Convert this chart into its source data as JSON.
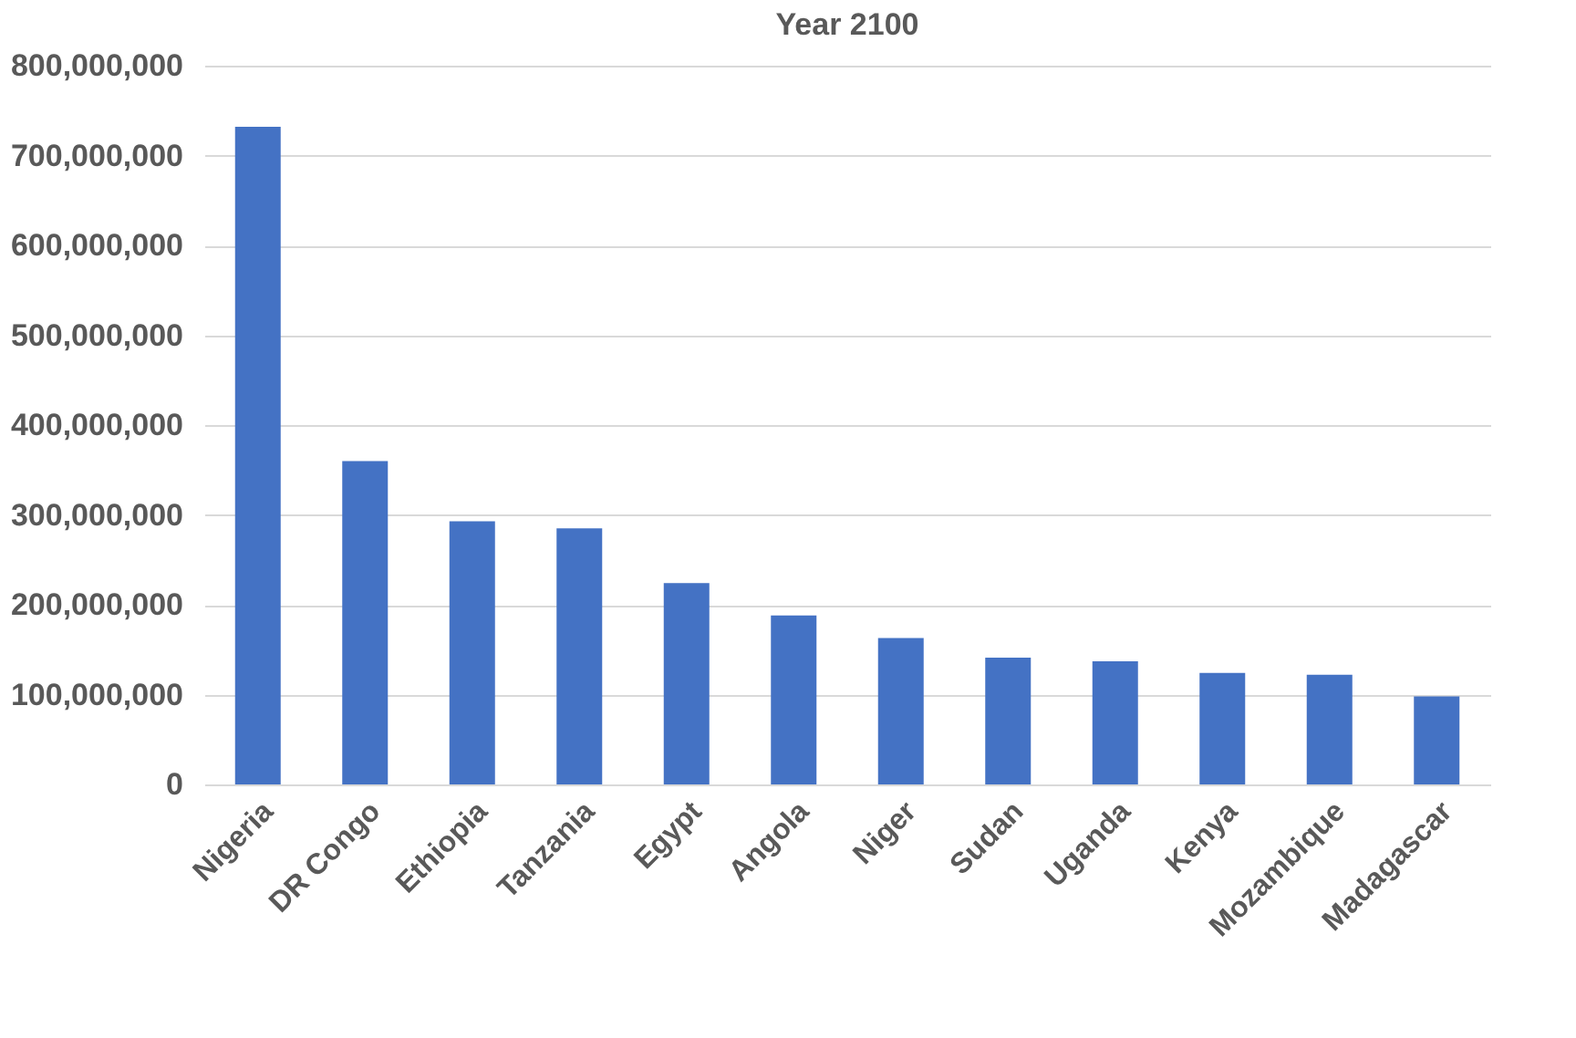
{
  "chart_data": {
    "type": "bar",
    "title": "Year 2100",
    "categories": [
      "Nigeria",
      "DR Congo",
      "Ethiopia",
      "Tanzania",
      "Egypt",
      "Angola",
      "Niger",
      "Sudan",
      "Uganda",
      "Kenya",
      "Mozambique",
      "Madagascar"
    ],
    "values": [
      732000000,
      360000000,
      293000000,
      285000000,
      224000000,
      188000000,
      163000000,
      141000000,
      137000000,
      124000000,
      122000000,
      98000000
    ],
    "color": "#4472c4",
    "ylim": [
      0,
      800000000
    ],
    "yticks": [
      {
        "value": 0,
        "label": "0"
      },
      {
        "value": 100000000,
        "label": "100,000,000"
      },
      {
        "value": 200000000,
        "label": "200,000,000"
      },
      {
        "value": 300000000,
        "label": "300,000,000"
      },
      {
        "value": 400000000,
        "label": "400,000,000"
      },
      {
        "value": 500000000,
        "label": "500,000,000"
      },
      {
        "value": 600000000,
        "label": "600,000,000"
      },
      {
        "value": 700000000,
        "label": "700,000,000"
      },
      {
        "value": 800000000,
        "label": "800,000,000"
      }
    ],
    "grid": "y"
  }
}
